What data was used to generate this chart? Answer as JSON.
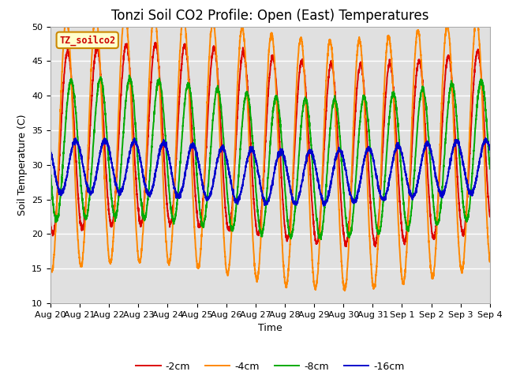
{
  "title": "Tonzi Soil CO2 Profile: Open (East) Temperatures",
  "xlabel": "Time",
  "ylabel": "Soil Temperature (C)",
  "ylim": [
    10,
    50
  ],
  "background_color": "#e0e0e0",
  "legend_label": "TZ_soilco2",
  "x_tick_labels": [
    "Aug 20",
    "Aug 21",
    "Aug 22",
    "Aug 23",
    "Aug 24",
    "Aug 25",
    "Aug 26",
    "Aug 27",
    "Aug 28",
    "Aug 29",
    "Aug 30",
    "Aug 31",
    "Sep 1",
    "Sep 2",
    "Sep 3",
    "Sep 4"
  ],
  "series": [
    {
      "label": "-2cm",
      "color": "#dd0000"
    },
    {
      "label": "-4cm",
      "color": "#ff8800"
    },
    {
      "label": "-8cm",
      "color": "#00aa00"
    },
    {
      "label": "-16cm",
      "color": "#0000cc"
    }
  ],
  "n_points": 3360,
  "days": 15,
  "yticks": [
    10,
    15,
    20,
    25,
    30,
    35,
    40,
    45,
    50
  ],
  "grid_color": "#ffffff",
  "line_width": 1.4,
  "title_fontsize": 12,
  "axis_label_fontsize": 9,
  "tick_fontsize": 8
}
